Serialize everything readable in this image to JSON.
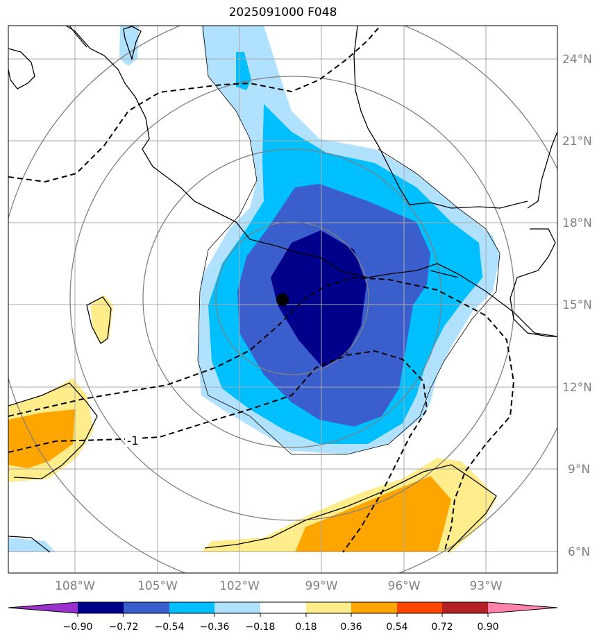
{
  "title": "2025091000 F048",
  "lat_labels": [
    "24°N",
    "21°N",
    "18°N",
    "15°N",
    "12°N",
    "9°N",
    "6°N"
  ],
  "lon_labels": [
    "108°W",
    "105°W",
    "102°W",
    "99°W",
    "96°W",
    "93°W"
  ],
  "colorbar": {
    "ticks": [
      "−0.90",
      "−0.72",
      "−0.54",
      "−0.36",
      "−0.18",
      "0.18",
      "0.36",
      "0.54",
      "0.72",
      "0.90"
    ],
    "colors": [
      "#9932cc",
      "#00008b",
      "#3a5fcd",
      "#00bfff",
      "#b0e2ff",
      "#ffffff",
      "#ffec8b",
      "#ffa500",
      "#ff4500",
      "#b22222",
      "#ff82ab"
    ]
  },
  "contour_label": "-1",
  "colors": {
    "c_neg90": "#00008b",
    "c_neg72": "#3a5fcd",
    "c_neg54": "#00bfff",
    "c_neg36": "#b0e2ff",
    "c_pos18": "#ffec8b",
    "c_pos36": "#ffa500"
  }
}
